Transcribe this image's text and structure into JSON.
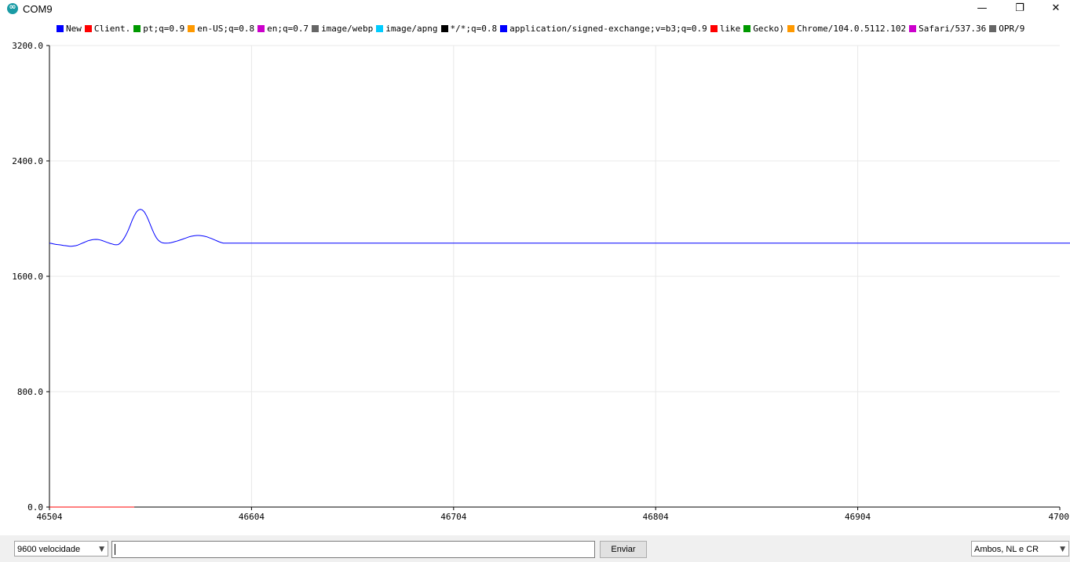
{
  "window": {
    "title": "COM9"
  },
  "legend": [
    {
      "label": "New",
      "color": "#0000ff"
    },
    {
      "label": "Client.",
      "color": "#ff0000"
    },
    {
      "label": "pt;q=0.9",
      "color": "#009900"
    },
    {
      "label": "en-US;q=0.8",
      "color": "#ff9900"
    },
    {
      "label": "en;q=0.7",
      "color": "#cc00cc"
    },
    {
      "label": "image/webp",
      "color": "#666666"
    },
    {
      "label": "image/apng",
      "color": "#00ccff"
    },
    {
      "label": "*/*;q=0.8",
      "color": "#000000"
    },
    {
      "label": "application/signed-exchange;v=b3;q=0.9",
      "color": "#0000ff"
    },
    {
      "label": "like",
      "color": "#ff0000"
    },
    {
      "label": "Gecko)",
      "color": "#009900"
    },
    {
      "label": "Chrome/104.0.5112.102",
      "color": "#ff9900"
    },
    {
      "label": "Safari/537.36",
      "color": "#cc00cc"
    },
    {
      "label": "OPR/9",
      "color": "#666666"
    }
  ],
  "chart_data": {
    "type": "line",
    "title": "",
    "xlabel": "",
    "ylabel": "",
    "xlim": [
      46504,
      47004
    ],
    "ylim": [
      0,
      3200
    ],
    "x_ticks": [
      "46504",
      "46604",
      "46704",
      "46804",
      "46904",
      "4700"
    ],
    "y_ticks": [
      "0.0",
      "800.0",
      "1600.0",
      "2400.0",
      "3200.0"
    ],
    "series": [
      {
        "name": "New",
        "color": "#0000ff",
        "x_start": 46504,
        "step": 1,
        "values": [
          1830,
          1828,
          1825,
          1822,
          1820,
          1818,
          1816,
          1814,
          1812,
          1810,
          1808,
          1808,
          1810,
          1812,
          1816,
          1822,
          1828,
          1834,
          1840,
          1846,
          1850,
          1853,
          1855,
          1856,
          1855,
          1852,
          1848,
          1843,
          1838,
          1833,
          1828,
          1824,
          1820,
          1818,
          1820,
          1830,
          1845,
          1865,
          1890,
          1920,
          1955,
          1990,
          2020,
          2045,
          2060,
          2065,
          2060,
          2045,
          2020,
          1990,
          1955,
          1920,
          1890,
          1865,
          1848,
          1838,
          1832,
          1830,
          1830,
          1831,
          1833,
          1836,
          1840,
          1844,
          1848,
          1853,
          1858,
          1863,
          1868,
          1873,
          1877,
          1880,
          1882,
          1883,
          1883,
          1882,
          1880,
          1877,
          1873,
          1868,
          1863,
          1857,
          1851,
          1845,
          1839,
          1834,
          1830,
          1830,
          1830,
          1830,
          1830,
          1830,
          1830,
          1830,
          1830,
          1830,
          1830,
          1830,
          1830,
          1830,
          1830,
          1830,
          1830,
          1830,
          1830,
          1830,
          1830,
          1830,
          1830,
          1830,
          1830,
          1830,
          1830,
          1830,
          1830,
          1830,
          1830,
          1830,
          1830,
          1830,
          1830,
          1830,
          1830,
          1830,
          1830,
          1830,
          1830,
          1830,
          1830,
          1830,
          1830,
          1830,
          1830,
          1830,
          1830,
          1830,
          1830,
          1830,
          1830,
          1830,
          1830,
          1830,
          1830,
          1830,
          1830,
          1830,
          1830,
          1830,
          1830,
          1830,
          1830,
          1830,
          1830,
          1830,
          1830,
          1830,
          1830,
          1830,
          1830,
          1830,
          1830,
          1830,
          1830,
          1830,
          1830,
          1830,
          1830,
          1830,
          1830,
          1830,
          1830,
          1830,
          1830,
          1830,
          1830,
          1830,
          1830,
          1830,
          1830,
          1830,
          1830,
          1830,
          1830,
          1830,
          1830,
          1830,
          1830,
          1830,
          1830,
          1830,
          1830,
          1830,
          1830,
          1830,
          1830,
          1830,
          1830,
          1830,
          1830,
          1830,
          1830,
          1830,
          1830,
          1830,
          1830,
          1830,
          1830,
          1830,
          1830,
          1830,
          1830,
          1830,
          1830,
          1830,
          1830,
          1830,
          1830,
          1830,
          1830,
          1830,
          1830,
          1830,
          1830,
          1830,
          1830,
          1830,
          1830,
          1830,
          1830,
          1830,
          1830,
          1830,
          1830,
          1830,
          1830,
          1830,
          1830,
          1830,
          1830,
          1830,
          1830,
          1830,
          1830,
          1830,
          1830,
          1830,
          1830,
          1830,
          1830,
          1830,
          1830,
          1830,
          1830,
          1830,
          1830,
          1830,
          1830,
          1830,
          1830,
          1830,
          1830,
          1830,
          1830,
          1830,
          1830,
          1830,
          1830,
          1830,
          1830,
          1830,
          1830,
          1830,
          1830,
          1830,
          1830,
          1830,
          1830,
          1830,
          1830,
          1830,
          1830,
          1830,
          1830,
          1830,
          1830,
          1830,
          1830,
          1830,
          1830,
          1830,
          1830,
          1830,
          1830,
          1830,
          1830,
          1830,
          1830,
          1830,
          1830,
          1830,
          1830,
          1830,
          1830,
          1830,
          1830,
          1830,
          1830,
          1830,
          1830,
          1830,
          1830,
          1830,
          1830,
          1830,
          1830,
          1830,
          1830,
          1830,
          1830,
          1830,
          1830,
          1830,
          1830,
          1830,
          1830,
          1830,
          1830,
          1830,
          1830,
          1830,
          1830,
          1830,
          1830,
          1830,
          1830,
          1830,
          1830,
          1830,
          1830,
          1830,
          1830,
          1830,
          1830,
          1830,
          1830,
          1830,
          1830,
          1830,
          1830,
          1830,
          1830,
          1830,
          1830,
          1830,
          1830,
          1830,
          1830,
          1830,
          1830,
          1830,
          1830,
          1830,
          1830,
          1830,
          1830,
          1830,
          1830,
          1830,
          1830,
          1830,
          1830,
          1830,
          1830,
          1830,
          1830,
          1830,
          1830,
          1830,
          1830,
          1830,
          1830,
          1830,
          1830,
          1830,
          1830,
          1830,
          1830,
          1830,
          1830,
          1830,
          1830,
          1830,
          1830,
          1830,
          1830,
          1830,
          1830,
          1830,
          1830,
          1830,
          1830,
          1830,
          1830,
          1830,
          1830,
          1830,
          1830,
          1830,
          1830,
          1830,
          1830,
          1830,
          1830,
          1830,
          1830,
          1830,
          1830,
          1830,
          1830,
          1830,
          1830,
          1830,
          1830,
          1830,
          1830,
          1830,
          1830,
          1830,
          1830,
          1830,
          1830,
          1830,
          1830,
          1830,
          1830,
          1830,
          1830,
          1830,
          1830,
          1830,
          1830,
          1830,
          1830,
          1830,
          1830,
          1830,
          1830,
          1830,
          1830,
          1830,
          1830,
          1830,
          1830,
          1830,
          1830,
          1830,
          1830,
          1830,
          1830,
          1830,
          1830,
          1830,
          1830,
          1830,
          1830,
          1830,
          1830,
          1830,
          1830,
          1830,
          1830,
          1830,
          1830,
          1830,
          1830,
          1830,
          1830,
          1830,
          1830,
          1830,
          1830,
          1830,
          1830,
          1830,
          1830,
          1830,
          1830,
          1830,
          1830,
          1830,
          1830,
          1830,
          1830,
          1830,
          1830,
          1830,
          1830,
          1830,
          1830,
          1830,
          1830,
          1830,
          1830,
          1830,
          1830,
          1830,
          1830,
          1830,
          1830,
          1830,
          1830,
          1830,
          1830,
          1830,
          1830,
          1830,
          1830,
          1830,
          1830,
          1830,
          1830,
          1830,
          1830,
          1830,
          1830,
          1830,
          1830,
          1830,
          1830,
          1830,
          1830,
          1830,
          1830,
          1830,
          1830,
          1830,
          1830,
          1830,
          1830,
          1830,
          1830,
          1830,
          1830,
          1830,
          1830,
          1830,
          1830,
          1830,
          1830,
          1830,
          1830,
          1830,
          1830,
          1830,
          1830,
          1830,
          1830,
          1830,
          1830,
          1830,
          1830,
          1830,
          1830,
          1830,
          1830,
          1830,
          1830,
          1830,
          1830,
          1830,
          1830,
          1830,
          1830,
          1830,
          1830,
          1830,
          1830,
          1830,
          1830,
          1830,
          1830,
          1830,
          1830,
          1830,
          1830,
          1830,
          1830,
          1830,
          1830,
          1830,
          1830,
          1830,
          1830,
          1830,
          1830,
          1830,
          1830,
          1830,
          1830,
          1830
        ]
      },
      {
        "name": "Client.",
        "color": "#ff0000",
        "x_start": 46504,
        "step": 1,
        "values": [
          0,
          0,
          0,
          0,
          0,
          0,
          0,
          0,
          0,
          0,
          0,
          0,
          0,
          0,
          0,
          0,
          0,
          0,
          0,
          0,
          0,
          0,
          0,
          0,
          0,
          0,
          0,
          0,
          0,
          0,
          0,
          0,
          0,
          0,
          0,
          0,
          0,
          0,
          0,
          0,
          0,
          0,
          0
        ]
      }
    ]
  },
  "controls": {
    "baud_label": "9600 velocidade",
    "send_value": "",
    "send_button": "Enviar",
    "line_ending": "Ambos, NL e CR"
  }
}
